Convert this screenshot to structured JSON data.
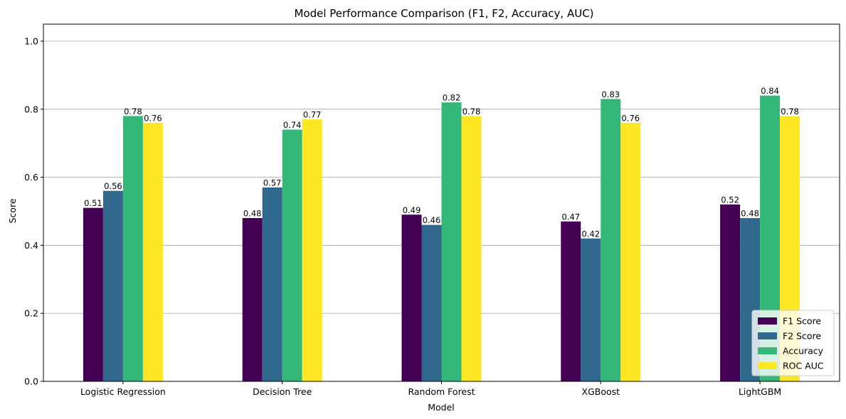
{
  "chart_data": {
    "type": "bar",
    "title": "Model Performance Comparison (F1, F2, Accuracy, AUC)",
    "xlabel": "Model",
    "ylabel": "Score",
    "ylim": [
      0,
      1.05
    ],
    "yticks": [
      0.0,
      0.2,
      0.4,
      0.6,
      0.8,
      1.0
    ],
    "ytick_labels": [
      "0.0",
      "0.2",
      "0.4",
      "0.6",
      "0.8",
      "1.0"
    ],
    "grid": "horizontal",
    "legend_position": "bottom-right",
    "categories": [
      "Logistic Regression",
      "Decision Tree",
      "Random Forest",
      "XGBoost",
      "LightGBM"
    ],
    "series": [
      {
        "name": "F1 Score",
        "color": "#440154",
        "values": [
          0.51,
          0.48,
          0.49,
          0.47,
          0.52
        ],
        "labels": [
          "0.51",
          "0.48",
          "0.49",
          "0.47",
          "0.52"
        ]
      },
      {
        "name": "F2 Score",
        "color": "#31688e",
        "values": [
          0.56,
          0.57,
          0.46,
          0.42,
          0.48
        ],
        "labels": [
          "0.56",
          "0.57",
          "0.46",
          "0.42",
          "0.48"
        ]
      },
      {
        "name": "Accuracy",
        "color": "#35b779",
        "values": [
          0.78,
          0.74,
          0.82,
          0.83,
          0.84
        ],
        "labels": [
          "0.78",
          "0.74",
          "0.82",
          "0.83",
          "0.84"
        ]
      },
      {
        "name": "ROC AUC",
        "color": "#fde725",
        "values": [
          0.76,
          0.77,
          0.78,
          0.76,
          0.78
        ],
        "labels": [
          "0.76",
          "0.77",
          "0.78",
          "0.76",
          "0.78"
        ]
      }
    ]
  }
}
